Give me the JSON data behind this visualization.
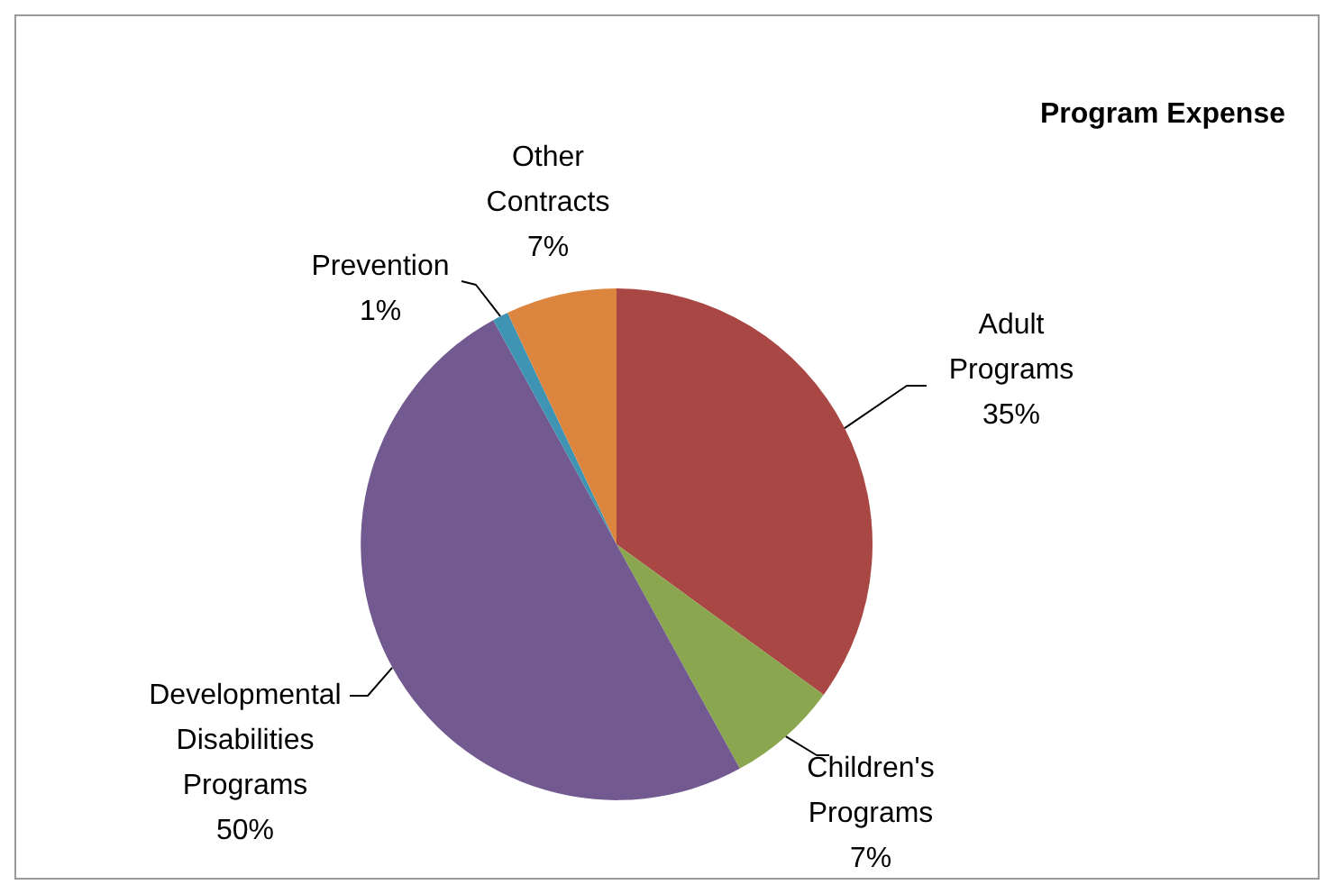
{
  "chart_data": {
    "type": "pie",
    "title": "Program Expense",
    "categories": [
      "Adult Programs",
      "Children's Programs",
      "Developmental Disabilities Programs",
      "Prevention",
      "Other Contracts"
    ],
    "values": [
      35,
      7,
      50,
      1,
      7
    ],
    "colors": [
      "#a94744",
      "#8aa64e",
      "#725a90",
      "#3f94b3",
      "#dc853f"
    ],
    "value_labels": [
      "35%",
      "7%",
      "50%",
      "1%",
      "7%"
    ],
    "legend": false
  }
}
